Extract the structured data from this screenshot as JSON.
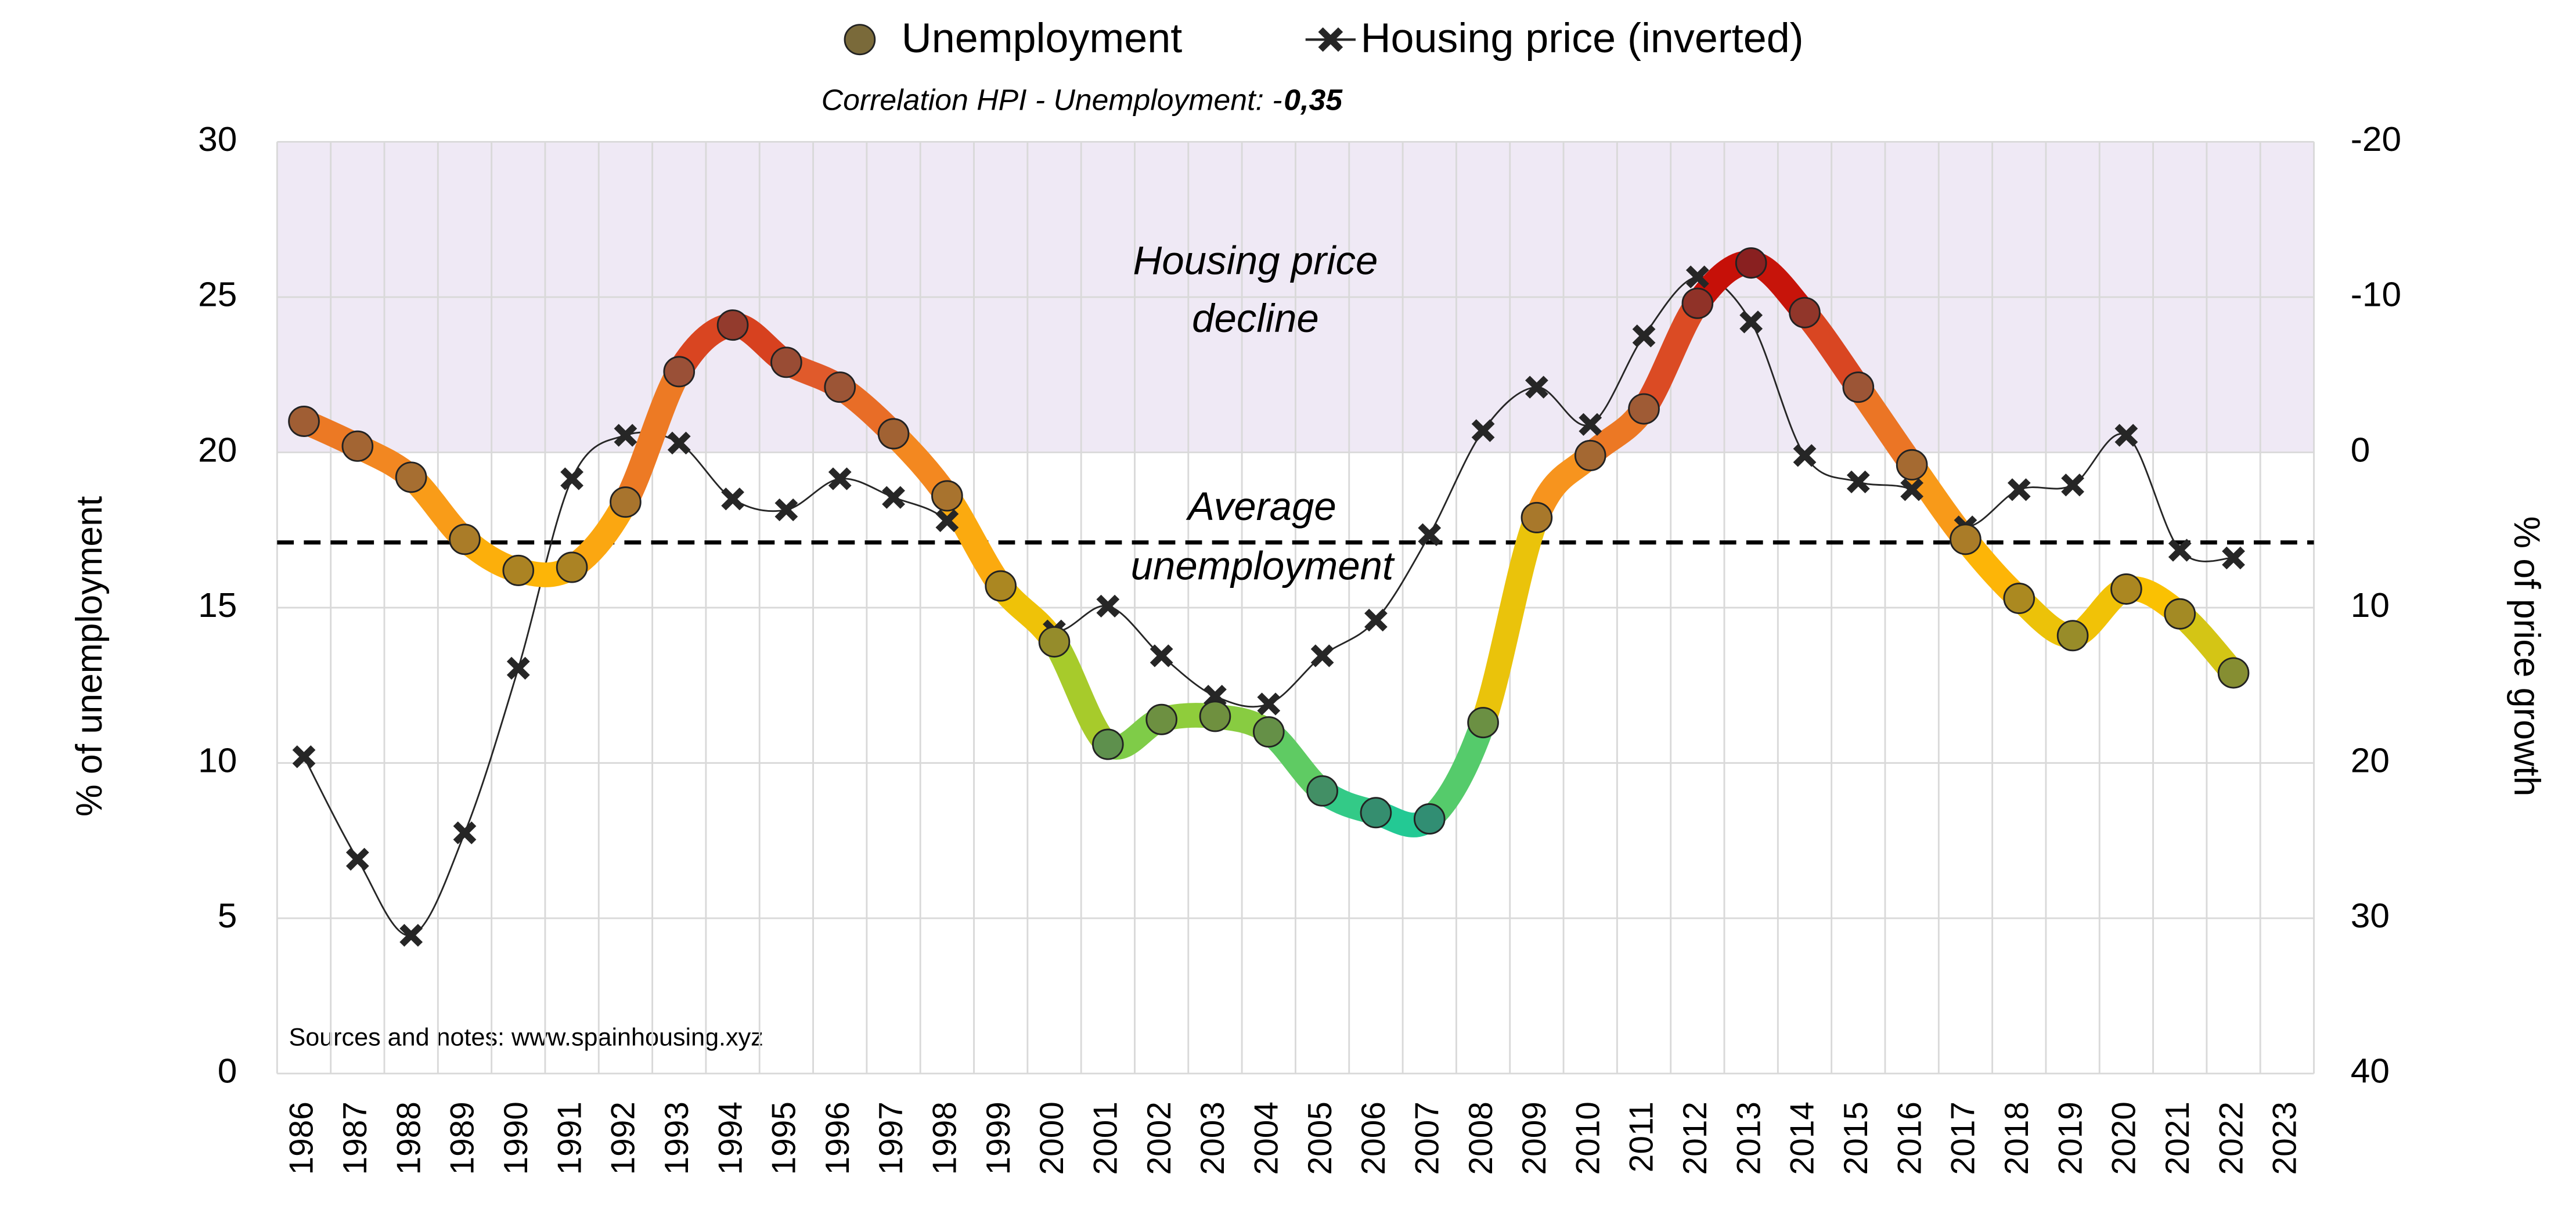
{
  "chart_data": {
    "type": "line",
    "subtitle": "Correlation HPI - Unemployment: -",
    "subtitle_value": "0,35",
    "source": "Sources and notes: www.spainhousing.xyz",
    "ylabel": "% of unemployment",
    "y2label": "% of price growth",
    "categories": [
      "1986",
      "1987",
      "1988",
      "1989",
      "1990",
      "1991",
      "1992",
      "1993",
      "1994",
      "1995",
      "1996",
      "1997",
      "1998",
      "1999",
      "2000",
      "2001",
      "2002",
      "2003",
      "2004",
      "2005",
      "2006",
      "2007",
      "2008",
      "2009",
      "2010",
      "2011",
      "2012",
      "2013",
      "2014",
      "2015",
      "2016",
      "2017",
      "2018",
      "2019",
      "2020",
      "2021",
      "2022",
      "2023"
    ],
    "ylim": [
      0,
      30
    ],
    "yticks": [
      0,
      5,
      10,
      15,
      20,
      25,
      30
    ],
    "y2lim": [
      40,
      -20
    ],
    "y2ticks": [
      -20,
      -10,
      0,
      10,
      20,
      30,
      40
    ],
    "grid": true,
    "legend": "top",
    "shade": {
      "from": 20,
      "to": 30,
      "color": "#efe9f5",
      "label": [
        "Housing price",
        "decline"
      ]
    },
    "average": {
      "value": 17.1,
      "label": [
        "Average",
        "unemployment"
      ]
    },
    "series": [
      {
        "name": "Unemployment",
        "colors": [
          "#20c997",
          "#9acd32",
          "#ffc000",
          "#f7931e",
          "#e05a2b",
          "#c00000"
        ],
        "values": [
          21.0,
          20.2,
          19.2,
          17.2,
          16.2,
          16.3,
          18.4,
          22.6,
          24.1,
          22.9,
          22.1,
          20.6,
          18.6,
          15.7,
          13.9,
          10.6,
          11.4,
          11.5,
          11.0,
          9.1,
          8.4,
          8.2,
          11.3,
          17.9,
          19.9,
          21.4,
          24.8,
          26.1,
          24.5,
          22.1,
          19.6,
          17.2,
          15.3,
          14.1,
          15.6,
          14.8,
          12.9,
          null
        ]
      },
      {
        "name": "Housing price (inverted)",
        "color": "#262626",
        "axis": "y2",
        "values": [
          19.6,
          26.2,
          31.1,
          24.5,
          13.9,
          1.7,
          -1.1,
          -0.6,
          3.0,
          3.7,
          1.7,
          2.9,
          4.4,
          8.7,
          11.5,
          9.9,
          13.1,
          15.7,
          16.2,
          13.1,
          10.8,
          5.3,
          -1.4,
          -4.2,
          -1.8,
          -7.5,
          -11.3,
          -8.4,
          0.2,
          1.9,
          2.4,
          4.8,
          2.4,
          2.1,
          -1.1,
          6.3,
          6.8,
          null
        ]
      }
    ]
  }
}
